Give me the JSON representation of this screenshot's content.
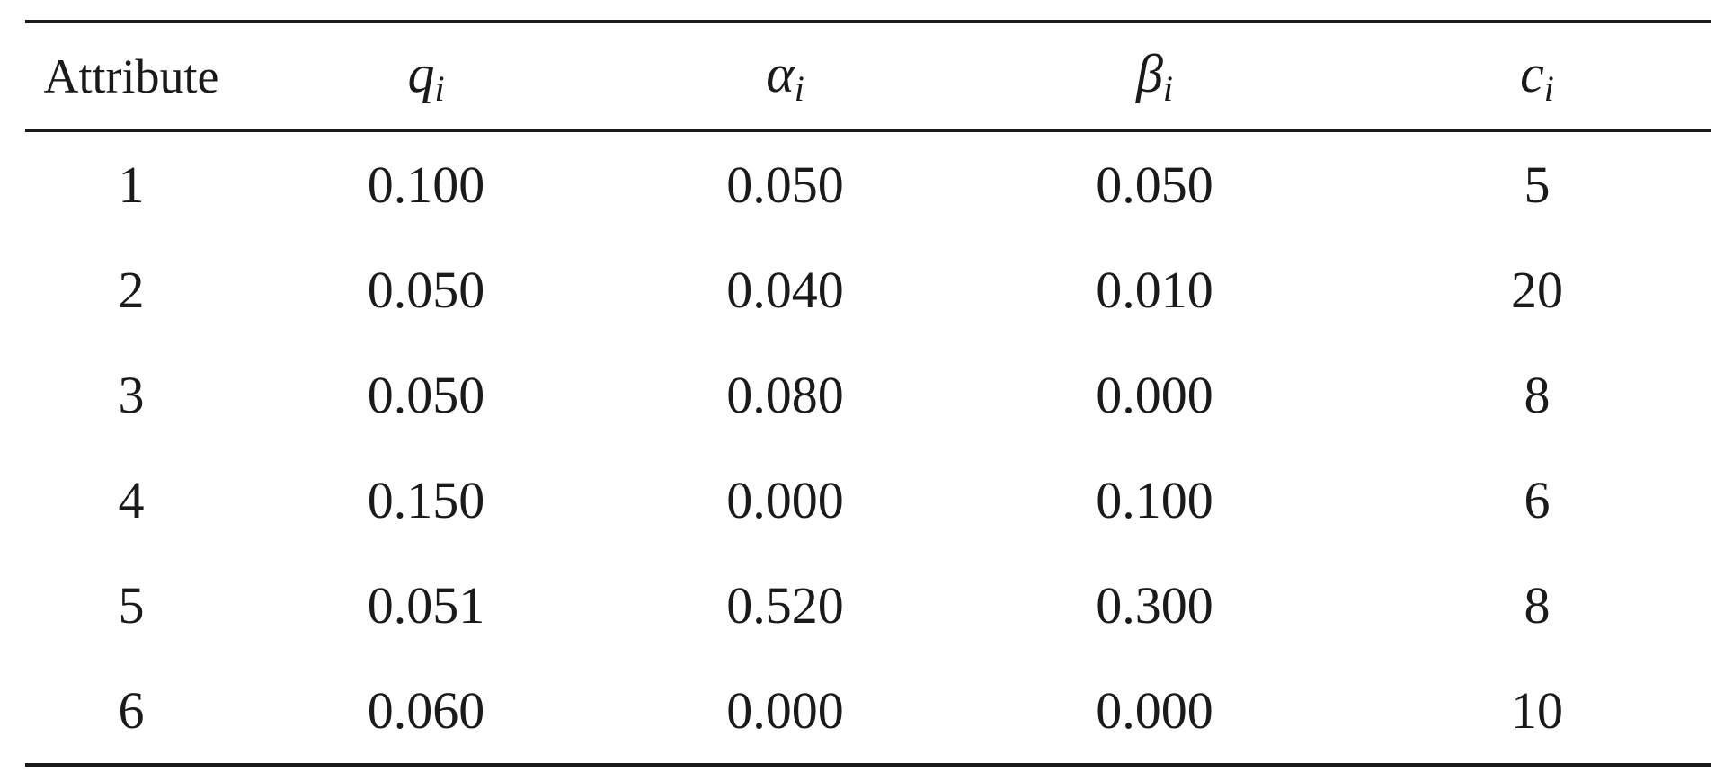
{
  "table": {
    "columns": [
      {
        "label": "Attribute",
        "base": "",
        "sub": ""
      },
      {
        "label": "",
        "base": "q",
        "sub": "i"
      },
      {
        "label": "",
        "base": "α",
        "sub": "i"
      },
      {
        "label": "",
        "base": "β",
        "sub": "i"
      },
      {
        "label": "",
        "base": "c",
        "sub": "i"
      }
    ],
    "rows": [
      [
        "1",
        "0.100",
        "0.050",
        "0.050",
        "5"
      ],
      [
        "2",
        "0.050",
        "0.040",
        "0.010",
        "20"
      ],
      [
        "3",
        "0.050",
        "0.080",
        "0.000",
        "8"
      ],
      [
        "4",
        "0.150",
        "0.000",
        "0.100",
        "6"
      ],
      [
        "5",
        "0.051",
        "0.520",
        "0.300",
        "8"
      ],
      [
        "6",
        "0.060",
        "0.000",
        "0.000",
        "10"
      ]
    ]
  }
}
